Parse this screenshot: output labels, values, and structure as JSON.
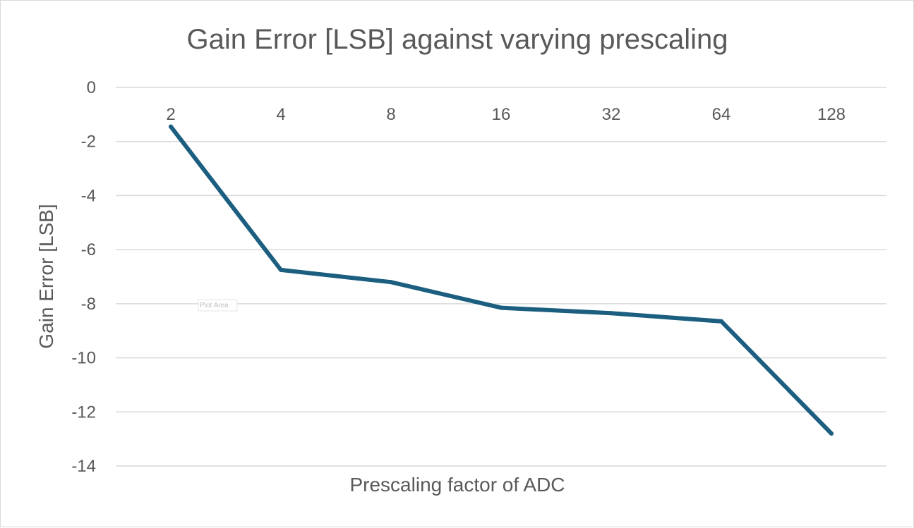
{
  "chart_data": {
    "type": "line",
    "title": "Gain Error [LSB] against varying prescaling",
    "xlabel": "Prescaling factor of ADC",
    "ylabel": "Gain Error [LSB]",
    "categories": [
      "2",
      "4",
      "8",
      "16",
      "32",
      "64",
      "128"
    ],
    "series": [
      {
        "values": [
          -1.45,
          -6.75,
          -7.2,
          -8.15,
          -8.35,
          -8.65,
          -12.8
        ]
      }
    ],
    "ylim": [
      -14,
      0
    ],
    "yticks": [
      "0",
      "-2",
      "-4",
      "-6",
      "-8",
      "-10",
      "-12",
      "-14"
    ],
    "grid": true,
    "legend": "none",
    "colors": {
      "line": "#1b5e80",
      "grid": "#d9d9d9",
      "text": "#595959"
    }
  },
  "overlay": {
    "tooltip": "Plot Area"
  }
}
